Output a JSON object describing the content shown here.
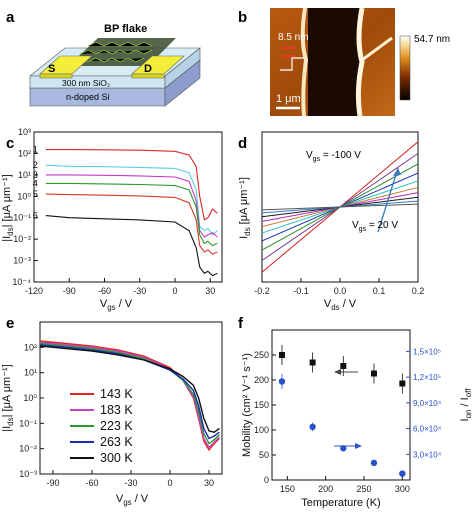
{
  "figure": {
    "panel_labels": [
      "a",
      "b",
      "c",
      "d",
      "e",
      "f"
    ]
  },
  "panel_a": {
    "flake_label": "BP flake",
    "source_label": "S",
    "drain_label": "D",
    "oxide_label": "300 nm SiO₂",
    "substrate_label": "n-doped Si"
  },
  "panel_b": {
    "height_label": "8.5 nm",
    "scale_label": "1 μm",
    "colorbar_max": "54.7 nm"
  },
  "chart_data": [
    {
      "panel": "c",
      "type": "line",
      "xlabel": "V_gs / V",
      "ylabel": "|I_ds| [μA μm⁻¹]",
      "xlim": [
        -120,
        40
      ],
      "ylim_log10": [
        -4,
        3
      ],
      "yscale": "log",
      "xticks": [
        "-120",
        "-90",
        "-60",
        "-30",
        "0",
        "30"
      ],
      "yticks": [
        "10⁻⁴",
        "10⁻³",
        "10⁻²",
        "10⁻¹",
        "10⁰",
        "10¹",
        "10²",
        "10³"
      ],
      "curve_labels": [
        "1",
        "2",
        "3",
        "4",
        "5",
        "6"
      ],
      "series_colors": [
        "#e0242a",
        "#5ad0e4",
        "#c63cc6",
        "#2a9a2a",
        "#d43a2a",
        "#111111"
      ],
      "plateau_values": [
        150,
        25,
        10,
        4,
        1.1,
        0.1
      ],
      "x": [
        -110,
        -90,
        -60,
        -30,
        0,
        12,
        18,
        21,
        25,
        28,
        32,
        36
      ],
      "series_log10": [
        [
          2.18,
          2.18,
          2.17,
          2.15,
          2.1,
          1.92,
          1.4,
          0.0,
          -1.1,
          -1.0,
          -0.6,
          -0.8
        ],
        [
          1.45,
          1.4,
          1.38,
          1.35,
          1.3,
          1.1,
          0.3,
          -1.4,
          -1.6,
          -1.5,
          -1.8,
          -1.6
        ],
        [
          1.0,
          1.0,
          0.98,
          0.95,
          0.9,
          0.7,
          -0.2,
          -1.6,
          -1.9,
          -1.8,
          -1.7,
          -1.9
        ],
        [
          0.6,
          0.6,
          0.58,
          0.55,
          0.5,
          0.3,
          -0.5,
          -1.8,
          -2.2,
          -2.1,
          -2.3,
          -2.2
        ],
        [
          0.1,
          0.08,
          0.05,
          0.02,
          -0.05,
          -0.3,
          -1.1,
          -2.3,
          -2.6,
          -2.5,
          -2.7,
          -2.6
        ],
        [
          -0.9,
          -1.0,
          -1.05,
          -1.1,
          -1.2,
          -1.6,
          -2.4,
          -3.3,
          -3.6,
          -3.5,
          -3.7,
          -3.6
        ]
      ]
    },
    {
      "panel": "d",
      "type": "line",
      "xlabel": "V_ds / V",
      "ylabel": "I_ds [μA μm⁻¹]",
      "xlim": [
        -0.2,
        0.2
      ],
      "xticks": [
        "-0.2",
        "-0.1",
        "0.0",
        "0.1",
        "0.2"
      ],
      "annotation_top": "V_gs = -100 V",
      "annotation_bottom": "V_gs = 20 V",
      "x": [
        -0.2,
        0.2
      ],
      "slopes": [
        1.0,
        0.82,
        0.66,
        0.52,
        0.4,
        0.3,
        0.22,
        0.15,
        0.09,
        0.045
      ],
      "series_colors": [
        "#d01c1c",
        "#7a3a8a",
        "#2c8f2c",
        "#1a2cb0",
        "#2ac0c0",
        "#c07a30",
        "#b02ab0",
        "#1a1a1a",
        "#2a80c8",
        "#555555"
      ]
    },
    {
      "panel": "e",
      "type": "line",
      "xlabel": "V_gs / V",
      "ylabel": "|I_ds| [μA μm⁻¹]",
      "yscale": "log",
      "xlim": [
        -100,
        40
      ],
      "ylim_log10": [
        -3,
        3
      ],
      "xticks": [
        "-90",
        "-60",
        "-30",
        "0",
        "30"
      ],
      "yticks": [
        "10⁻³",
        "10⁻²",
        "10⁻¹",
        "10⁰",
        "10¹",
        "10²"
      ],
      "x": [
        -100,
        -80,
        -60,
        -40,
        -20,
        0,
        10,
        18,
        22,
        26,
        30,
        34,
        38
      ],
      "series": [
        {
          "name": "143 K",
          "color": "#e0242a",
          "log10": [
            2.25,
            2.15,
            2.05,
            1.9,
            1.65,
            1.2,
            0.7,
            0.0,
            -0.8,
            -1.7,
            -2.05,
            -1.8,
            -1.6
          ]
        },
        {
          "name": "183 K",
          "color": "#c640c6",
          "log10": [
            2.2,
            2.1,
            2.0,
            1.85,
            1.6,
            1.15,
            0.7,
            0.05,
            -0.7,
            -1.6,
            -1.95,
            -1.75,
            -1.55
          ]
        },
        {
          "name": "223 K",
          "color": "#2a9a2a",
          "log10": [
            2.15,
            2.05,
            1.95,
            1.8,
            1.55,
            1.1,
            0.7,
            0.15,
            -0.5,
            -1.4,
            -1.8,
            -1.65,
            -1.45
          ]
        },
        {
          "name": "263 K",
          "color": "#1a2cb0",
          "log10": [
            2.1,
            2.0,
            1.9,
            1.75,
            1.5,
            1.1,
            0.75,
            0.3,
            -0.3,
            -1.2,
            -1.6,
            -1.5,
            -1.35
          ]
        },
        {
          "name": "300 K",
          "color": "#111111",
          "log10": [
            2.05,
            1.95,
            1.85,
            1.7,
            1.5,
            1.15,
            0.85,
            0.5,
            0.0,
            -0.8,
            -1.3,
            -1.35,
            -1.2
          ]
        }
      ]
    },
    {
      "panel": "f",
      "type": "scatter",
      "xlabel": "Temperature (K)",
      "ylabel_left": "Mobility (cm² V⁻¹ s⁻¹)",
      "ylabel_right": "I_on / I_off",
      "xlim": [
        130,
        310
      ],
      "ylim_left": [
        0,
        300
      ],
      "ylim_right": [
        0,
        175000
      ],
      "xticks": [
        "150",
        "200",
        "250",
        "300"
      ],
      "yticks_left": [
        "0",
        "50",
        "100",
        "150",
        "200",
        "250"
      ],
      "yticks_right": [
        "3,0×10⁴",
        "6,0×10⁴",
        "9,0×10⁴",
        "1,2×10⁵",
        "1,5×10⁵"
      ],
      "x": [
        143,
        183,
        223,
        263,
        300
      ],
      "mobility": [
        250,
        235,
        228,
        213,
        193
      ],
      "mobility_err": [
        20,
        20,
        20,
        20,
        20
      ],
      "on_off_ratio": [
        115000,
        62000,
        37000,
        20000,
        7500
      ],
      "on_off_err": [
        9000,
        5000,
        3500,
        2500,
        2000
      ],
      "mobility_color": "#111111",
      "ratio_color": "#2850c8"
    }
  ]
}
